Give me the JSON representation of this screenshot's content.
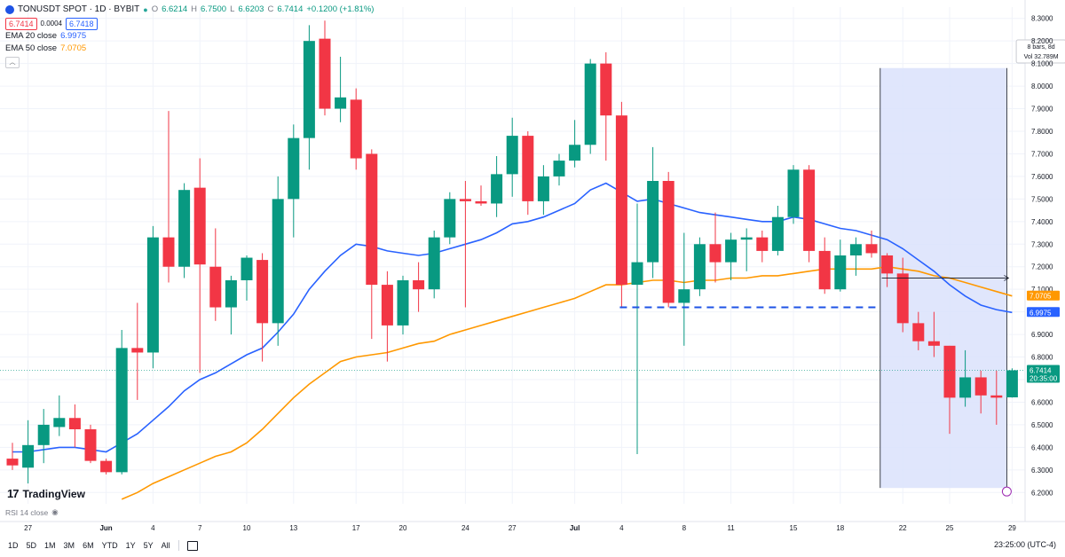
{
  "header": {
    "symbol_title": "TONUSDT SPOT · 1D · BYBIT",
    "ohlc": {
      "o_label": "O",
      "o": "6.6214",
      "h_label": "H",
      "h": "6.7500",
      "l_label": "L",
      "l": "6.6203",
      "c_label": "C",
      "c": "6.7414",
      "change": "+0.1200 (+1.81%)"
    },
    "sell_price": "6.7414",
    "spread": "0.0004",
    "buy_price": "6.7418",
    "ema20_label": "EMA 20 close",
    "ema20_value": "6.9975",
    "ema50_label": "EMA 50 close",
    "ema50_value": "7.0705",
    "collapse_icon": "chevron-up-icon"
  },
  "colors": {
    "up": "#089981",
    "down": "#f23645",
    "ema20": "#2962ff",
    "ema50": "#ff9800",
    "range_fill": "#dbe2fb",
    "grid": "#f0f3fa",
    "axis_text": "#131722"
  },
  "range_tool": {
    "bars_text": "8 bars, 8d",
    "vol_text": "Vol 32.789M",
    "start_date": "Jul 21",
    "end_date": "Jul 29"
  },
  "support_line": {
    "price": 7.02,
    "from_date": "Jul 4",
    "to_date": "Jul 20"
  },
  "projection_line": {
    "price": 7.15,
    "from_date": "Jul 21",
    "to_date": "Jul 29"
  },
  "price_tags": {
    "ema50": "7.0705",
    "ema20": "6.9975",
    "last": "6.7414",
    "countdown": "20:35:00"
  },
  "bottom": {
    "rsi_label": "RSI 14 close",
    "timeframes": [
      "1D",
      "5D",
      "1M",
      "3M",
      "6M",
      "YTD",
      "1Y",
      "5Y",
      "All"
    ],
    "clock": "23:25:00 (UTC-4)",
    "logo_text": "TradingView"
  },
  "chart_data": {
    "type": "candlestick",
    "title": "TONUSDT SPOT · 1D · BYBIT",
    "ylim": [
      6.15,
      8.35
    ],
    "y_ticks": [
      "6.2000",
      "6.3000",
      "6.4000",
      "6.5000",
      "6.6000",
      "6.7000",
      "6.8000",
      "6.9000",
      "7.0000",
      "7.1000",
      "7.2000",
      "7.3000",
      "7.4000",
      "7.5000",
      "7.6000",
      "7.7000",
      "7.8000",
      "7.9000",
      "8.0000",
      "8.1000",
      "8.2000",
      "8.3000"
    ],
    "x_ticks": [
      "27",
      "Jun",
      "4",
      "7",
      "10",
      "13",
      "17",
      "20",
      "24",
      "27",
      "Jul",
      "4",
      "8",
      "11",
      "15",
      "18",
      "22",
      "25",
      "29"
    ],
    "x_tick_dates": [
      "May 27",
      "Jun 1",
      "Jun 4",
      "Jun 7",
      "Jun 10",
      "Jun 13",
      "Jun 17",
      "Jun 20",
      "Jun 24",
      "Jun 27",
      "Jul 1",
      "Jul 4",
      "Jul 8",
      "Jul 11",
      "Jul 15",
      "Jul 18",
      "Jul 22",
      "Jul 25",
      "Jul 29"
    ],
    "candles": [
      {
        "date": "May 26",
        "o": 6.35,
        "h": 6.42,
        "l": 6.3,
        "c": 6.32
      },
      {
        "date": "May 27",
        "o": 6.31,
        "h": 6.52,
        "l": 6.24,
        "c": 6.41
      },
      {
        "date": "May 28",
        "o": 6.41,
        "h": 6.57,
        "l": 6.33,
        "c": 6.5
      },
      {
        "date": "May 29",
        "o": 6.49,
        "h": 6.63,
        "l": 6.45,
        "c": 6.53
      },
      {
        "date": "May 30",
        "o": 6.53,
        "h": 6.59,
        "l": 6.4,
        "c": 6.48
      },
      {
        "date": "May 31",
        "o": 6.48,
        "h": 6.5,
        "l": 6.33,
        "c": 6.34
      },
      {
        "date": "Jun 1",
        "o": 6.34,
        "h": 6.35,
        "l": 6.28,
        "c": 6.29
      },
      {
        "date": "Jun 2",
        "o": 6.29,
        "h": 6.92,
        "l": 6.28,
        "c": 6.84
      },
      {
        "date": "Jun 3",
        "o": 6.84,
        "h": 7.04,
        "l": 6.61,
        "c": 6.82
      },
      {
        "date": "Jun 4",
        "o": 6.82,
        "h": 7.38,
        "l": 6.75,
        "c": 7.33
      },
      {
        "date": "Jun 5",
        "o": 7.33,
        "h": 7.89,
        "l": 7.13,
        "c": 7.2
      },
      {
        "date": "Jun 6",
        "o": 7.2,
        "h": 7.57,
        "l": 7.15,
        "c": 7.54
      },
      {
        "date": "Jun 7",
        "o": 7.55,
        "h": 7.68,
        "l": 6.73,
        "c": 7.21
      },
      {
        "date": "Jun 8",
        "o": 7.2,
        "h": 7.37,
        "l": 6.96,
        "c": 7.02
      },
      {
        "date": "Jun 9",
        "o": 7.02,
        "h": 7.16,
        "l": 6.9,
        "c": 7.14
      },
      {
        "date": "Jun 10",
        "o": 7.14,
        "h": 7.25,
        "l": 7.05,
        "c": 7.24
      },
      {
        "date": "Jun 11",
        "o": 7.23,
        "h": 7.26,
        "l": 6.78,
        "c": 6.95
      },
      {
        "date": "Jun 12",
        "o": 6.95,
        "h": 7.6,
        "l": 6.85,
        "c": 7.5
      },
      {
        "date": "Jun 13",
        "o": 7.5,
        "h": 7.83,
        "l": 7.33,
        "c": 7.77
      },
      {
        "date": "Jun 14",
        "o": 7.77,
        "h": 8.27,
        "l": 7.63,
        "c": 8.2
      },
      {
        "date": "Jun 15",
        "o": 8.21,
        "h": 8.29,
        "l": 7.87,
        "c": 7.9
      },
      {
        "date": "Jun 16",
        "o": 7.9,
        "h": 8.13,
        "l": 7.84,
        "c": 7.95
      },
      {
        "date": "Jun 17",
        "o": 7.94,
        "h": 7.99,
        "l": 7.63,
        "c": 7.68
      },
      {
        "date": "Jun 18",
        "o": 7.7,
        "h": 7.72,
        "l": 6.88,
        "c": 7.12
      },
      {
        "date": "Jun 19",
        "o": 7.12,
        "h": 7.18,
        "l": 6.78,
        "c": 6.94
      },
      {
        "date": "Jun 20",
        "o": 6.94,
        "h": 7.16,
        "l": 6.9,
        "c": 7.14
      },
      {
        "date": "Jun 21",
        "o": 7.14,
        "h": 7.22,
        "l": 7.0,
        "c": 7.1
      },
      {
        "date": "Jun 22",
        "o": 7.1,
        "h": 7.36,
        "l": 7.06,
        "c": 7.33
      },
      {
        "date": "Jun 23",
        "o": 7.33,
        "h": 7.53,
        "l": 7.3,
        "c": 7.5
      },
      {
        "date": "Jun 24",
        "o": 7.5,
        "h": 7.58,
        "l": 7.02,
        "c": 7.49
      },
      {
        "date": "Jun 25",
        "o": 7.49,
        "h": 7.56,
        "l": 7.47,
        "c": 7.48
      },
      {
        "date": "Jun 26",
        "o": 7.48,
        "h": 7.69,
        "l": 7.42,
        "c": 7.61
      },
      {
        "date": "Jun 27",
        "o": 7.61,
        "h": 7.86,
        "l": 7.51,
        "c": 7.78
      },
      {
        "date": "Jun 28",
        "o": 7.78,
        "h": 7.8,
        "l": 7.43,
        "c": 7.49
      },
      {
        "date": "Jun 29",
        "o": 7.49,
        "h": 7.65,
        "l": 7.43,
        "c": 7.6
      },
      {
        "date": "Jun 30",
        "o": 7.6,
        "h": 7.7,
        "l": 7.56,
        "c": 7.67
      },
      {
        "date": "Jul 1",
        "o": 7.67,
        "h": 7.85,
        "l": 7.64,
        "c": 7.74
      },
      {
        "date": "Jul 2",
        "o": 7.74,
        "h": 8.12,
        "l": 7.7,
        "c": 8.1
      },
      {
        "date": "Jul 3",
        "o": 8.1,
        "h": 8.15,
        "l": 7.67,
        "c": 7.87
      },
      {
        "date": "Jul 4",
        "o": 7.87,
        "h": 7.93,
        "l": 7.02,
        "c": 7.12
      },
      {
        "date": "Jul 5",
        "o": 7.12,
        "h": 7.48,
        "l": 6.37,
        "c": 7.22
      },
      {
        "date": "Jul 6",
        "o": 7.22,
        "h": 7.73,
        "l": 7.15,
        "c": 7.58
      },
      {
        "date": "Jul 7",
        "o": 7.58,
        "h": 7.62,
        "l": 7.02,
        "c": 7.04
      },
      {
        "date": "Jul 8",
        "o": 7.04,
        "h": 7.35,
        "l": 6.85,
        "c": 7.1
      },
      {
        "date": "Jul 9",
        "o": 7.1,
        "h": 7.33,
        "l": 7.07,
        "c": 7.3
      },
      {
        "date": "Jul 10",
        "o": 7.3,
        "h": 7.44,
        "l": 7.13,
        "c": 7.22
      },
      {
        "date": "Jul 11",
        "o": 7.22,
        "h": 7.35,
        "l": 7.14,
        "c": 7.32
      },
      {
        "date": "Jul 12",
        "o": 7.32,
        "h": 7.37,
        "l": 7.18,
        "c": 7.33
      },
      {
        "date": "Jul 13",
        "o": 7.33,
        "h": 7.36,
        "l": 7.22,
        "c": 7.27
      },
      {
        "date": "Jul 14",
        "o": 7.27,
        "h": 7.47,
        "l": 7.25,
        "c": 7.42
      },
      {
        "date": "Jul 15",
        "o": 7.42,
        "h": 7.65,
        "l": 7.39,
        "c": 7.63
      },
      {
        "date": "Jul 16",
        "o": 7.63,
        "h": 7.65,
        "l": 7.22,
        "c": 7.27
      },
      {
        "date": "Jul 17",
        "o": 7.27,
        "h": 7.33,
        "l": 7.08,
        "c": 7.1
      },
      {
        "date": "Jul 18",
        "o": 7.1,
        "h": 7.32,
        "l": 7.09,
        "c": 7.25
      },
      {
        "date": "Jul 19",
        "o": 7.25,
        "h": 7.33,
        "l": 7.16,
        "c": 7.3
      },
      {
        "date": "Jul 20",
        "o": 7.3,
        "h": 7.36,
        "l": 7.24,
        "c": 7.26
      },
      {
        "date": "Jul 21",
        "o": 7.25,
        "h": 7.26,
        "l": 7.11,
        "c": 7.17
      },
      {
        "date": "Jul 22",
        "o": 7.17,
        "h": 7.24,
        "l": 6.91,
        "c": 6.95
      },
      {
        "date": "Jul 23",
        "o": 6.95,
        "h": 7.0,
        "l": 6.83,
        "c": 6.87
      },
      {
        "date": "Jul 24",
        "o": 6.87,
        "h": 7.0,
        "l": 6.8,
        "c": 6.85
      },
      {
        "date": "Jul 25",
        "o": 6.85,
        "h": 6.85,
        "l": 6.46,
        "c": 6.62
      },
      {
        "date": "Jul 26",
        "o": 6.62,
        "h": 6.83,
        "l": 6.58,
        "c": 6.71
      },
      {
        "date": "Jul 27",
        "o": 6.71,
        "h": 6.74,
        "l": 6.55,
        "c": 6.63
      },
      {
        "date": "Jul 28",
        "o": 6.63,
        "h": 6.74,
        "l": 6.5,
        "c": 6.62
      },
      {
        "date": "Jul 29",
        "o": 6.6214,
        "h": 6.75,
        "l": 6.6203,
        "c": 6.7414
      }
    ],
    "series": [
      {
        "name": "EMA 20 close",
        "start_date": "May 26",
        "values": [
          6.38,
          6.38,
          6.39,
          6.4,
          6.4,
          6.39,
          6.38,
          6.42,
          6.46,
          6.52,
          6.58,
          6.65,
          6.7,
          6.73,
          6.77,
          6.81,
          6.84,
          6.91,
          6.99,
          7.1,
          7.18,
          7.25,
          7.3,
          7.29,
          7.27,
          7.26,
          7.25,
          7.26,
          7.28,
          7.3,
          7.32,
          7.35,
          7.39,
          7.4,
          7.42,
          7.45,
          7.48,
          7.54,
          7.57,
          7.53,
          7.49,
          7.5,
          7.48,
          7.46,
          7.44,
          7.43,
          7.42,
          7.41,
          7.4,
          7.4,
          7.42,
          7.41,
          7.39,
          7.37,
          7.36,
          7.34,
          7.32,
          7.28,
          7.23,
          7.18,
          7.12,
          7.07,
          7.03,
          7.01,
          6.9975
        ]
      },
      {
        "name": "EMA 50 close",
        "start_date": "Jun 2",
        "values": [
          6.17,
          6.2,
          6.24,
          6.27,
          6.3,
          6.33,
          6.36,
          6.38,
          6.42,
          6.48,
          6.55,
          6.62,
          6.68,
          6.73,
          6.78,
          6.8,
          6.81,
          6.82,
          6.84,
          6.86,
          6.87,
          6.9,
          6.92,
          6.94,
          6.96,
          6.98,
          7.0,
          7.02,
          7.04,
          7.06,
          7.09,
          7.12,
          7.12,
          7.13,
          7.14,
          7.14,
          7.13,
          7.14,
          7.14,
          7.15,
          7.15,
          7.16,
          7.16,
          7.17,
          7.18,
          7.19,
          7.19,
          7.19,
          7.19,
          7.2,
          7.19,
          7.18,
          7.16,
          7.15,
          7.13,
          7.11,
          7.09,
          7.0705
        ]
      }
    ]
  }
}
